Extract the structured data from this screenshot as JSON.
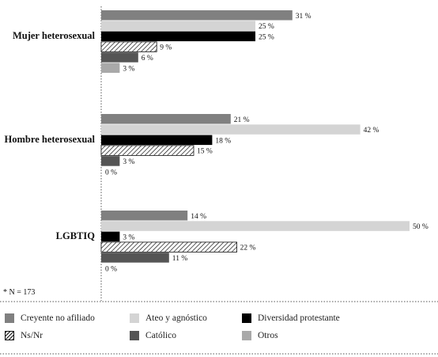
{
  "chart_data": {
    "type": "bar",
    "orientation": "horizontal",
    "categories": [
      "Mujer heterosexual",
      "Hombre heterosexual",
      "LGBTIQ"
    ],
    "series": [
      {
        "name": "Creyente no afiliado",
        "values": [
          31,
          21,
          14
        ],
        "labels": [
          "31 %",
          "21 %",
          "14 %"
        ],
        "color": "#808080",
        "pattern": "solid"
      },
      {
        "name": "Ateo y agnóstico",
        "values": [
          25,
          42,
          50
        ],
        "labels": [
          "25 %",
          "42 %",
          "50 %"
        ],
        "color": "#d4d4d4",
        "pattern": "solid"
      },
      {
        "name": "Diversidad protestante",
        "values": [
          25,
          18,
          3
        ],
        "labels": [
          "25 %",
          "18 %",
          "3 %"
        ],
        "color": "#000000",
        "pattern": "solid"
      },
      {
        "name": "Ns/Nr",
        "values": [
          9,
          15,
          22
        ],
        "labels": [
          "9 %",
          "15 %",
          "22 %"
        ],
        "color": "#ffffff",
        "pattern": "hatch"
      },
      {
        "name": "Católico",
        "values": [
          6,
          3,
          11
        ],
        "labels": [
          "6 %",
          "3 %",
          "11 %"
        ],
        "color": "#555555",
        "pattern": "solid"
      },
      {
        "name": "Otros",
        "values": [
          3,
          0,
          0
        ],
        "labels": [
          "3 %",
          "0 %",
          "0 %"
        ],
        "color": "#a9a9a9",
        "pattern": "solid"
      }
    ],
    "xlim": [
      0,
      50
    ],
    "grid": false,
    "legend_position": "bottom"
  },
  "note": "* N = 173"
}
